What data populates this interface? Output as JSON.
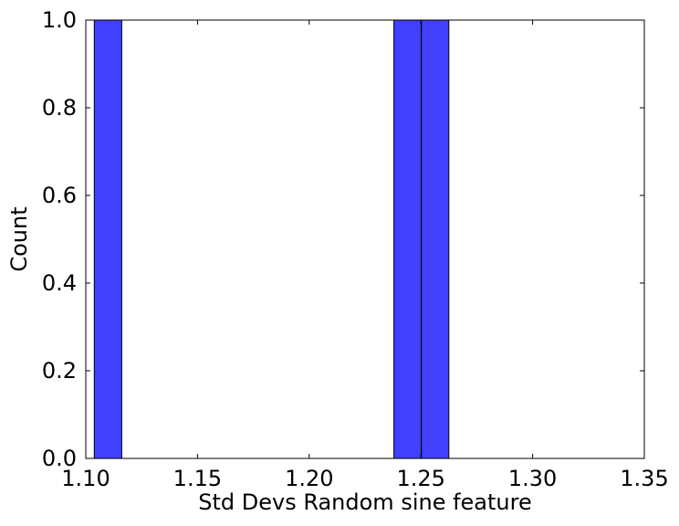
{
  "chart_data": {
    "type": "bar",
    "title": "",
    "xlabel": "Std Devs Random sine feature",
    "ylabel": "Count",
    "xlim": [
      1.1,
      1.35
    ],
    "ylim": [
      0.0,
      1.0
    ],
    "x_ticks": [
      "1.10",
      "1.15",
      "1.20",
      "1.25",
      "1.30",
      "1.35"
    ],
    "y_ticks": [
      "0.0",
      "0.2",
      "0.4",
      "0.6",
      "0.8",
      "1.0"
    ],
    "grid": false,
    "legend": false,
    "bar_color": "#4040ff",
    "edge_color": "#000000",
    "bars": [
      {
        "x0": 1.1038,
        "x1": 1.1161,
        "value": 1
      },
      {
        "x0": 1.2379,
        "x1": 1.2502,
        "value": 1
      },
      {
        "x0": 1.2502,
        "x1": 1.2625,
        "value": 1
      }
    ]
  }
}
